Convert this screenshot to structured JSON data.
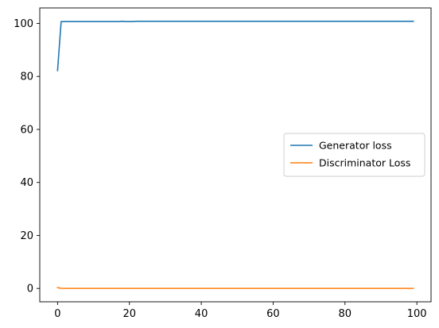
{
  "chart_data": {
    "type": "line",
    "title": "",
    "xlabel": "",
    "ylabel": "",
    "xlim": [
      -4.95,
      103.95
    ],
    "ylim": [
      -5.04,
      105.84
    ],
    "x_ticks": [
      0,
      20,
      40,
      60,
      80,
      100
    ],
    "y_ticks": [
      0,
      20,
      40,
      60,
      80,
      100
    ],
    "grid": false,
    "legend": {
      "placement": "center-right"
    },
    "series": [
      {
        "name": "Generator loss",
        "color": "#1f77b4",
        "x_start": 0,
        "x_step": 1,
        "values": [
          82.2,
          100.7,
          100.7,
          100.7,
          100.7,
          100.7,
          100.7,
          100.7,
          100.7,
          100.7,
          100.7,
          100.7,
          100.7,
          100.7,
          100.7,
          100.7,
          100.7,
          100.7,
          100.8,
          100.7,
          100.7,
          100.7,
          100.8,
          100.8,
          100.8,
          100.8,
          100.8,
          100.8,
          100.8,
          100.8,
          100.8,
          100.8,
          100.8,
          100.8,
          100.8,
          100.8,
          100.8,
          100.8,
          100.8,
          100.8,
          100.8,
          100.8,
          100.8,
          100.8,
          100.8,
          100.8,
          100.8,
          100.8,
          100.8,
          100.8,
          100.8,
          100.8,
          100.8,
          100.8,
          100.8,
          100.8,
          100.8,
          100.8,
          100.8,
          100.8,
          100.8,
          100.8,
          100.8,
          100.8,
          100.8,
          100.8,
          100.8,
          100.8,
          100.8,
          100.8,
          100.8,
          100.8,
          100.8,
          100.8,
          100.8,
          100.8,
          100.8,
          100.8,
          100.8,
          100.8,
          100.8,
          100.8,
          100.8,
          100.8,
          100.8,
          100.8,
          100.8,
          100.8,
          100.8,
          100.8,
          100.8,
          100.8,
          100.8,
          100.8,
          100.8,
          100.8,
          100.8,
          100.8,
          100.8,
          100.8
        ]
      },
      {
        "name": "Discriminator Loss",
        "color": "#ff7f0e",
        "x_start": 0,
        "x_step": 1,
        "values": [
          0.3,
          0.05,
          0.02,
          0.02,
          0.02,
          0.02,
          0.02,
          0.02,
          0.02,
          0.02,
          0.02,
          0.02,
          0.02,
          0.02,
          0.02,
          0.02,
          0.02,
          0.02,
          0.02,
          0.02,
          0.02,
          0.02,
          0.02,
          0.02,
          0.02,
          0.02,
          0.02,
          0.02,
          0.02,
          0.02,
          0.02,
          0.02,
          0.02,
          0.02,
          0.02,
          0.02,
          0.02,
          0.02,
          0.02,
          0.02,
          0.02,
          0.02,
          0.02,
          0.02,
          0.02,
          0.02,
          0.02,
          0.02,
          0.02,
          0.02,
          0.02,
          0.02,
          0.02,
          0.02,
          0.02,
          0.02,
          0.02,
          0.02,
          0.02,
          0.02,
          0.02,
          0.02,
          0.02,
          0.02,
          0.02,
          0.02,
          0.02,
          0.02,
          0.02,
          0.02,
          0.02,
          0.02,
          0.02,
          0.02,
          0.02,
          0.02,
          0.02,
          0.02,
          0.02,
          0.02,
          0.02,
          0.02,
          0.02,
          0.02,
          0.02,
          0.02,
          0.02,
          0.02,
          0.02,
          0.02,
          0.02,
          0.02,
          0.02,
          0.02,
          0.02,
          0.02,
          0.02,
          0.02,
          0.02,
          0.02
        ]
      }
    ]
  }
}
